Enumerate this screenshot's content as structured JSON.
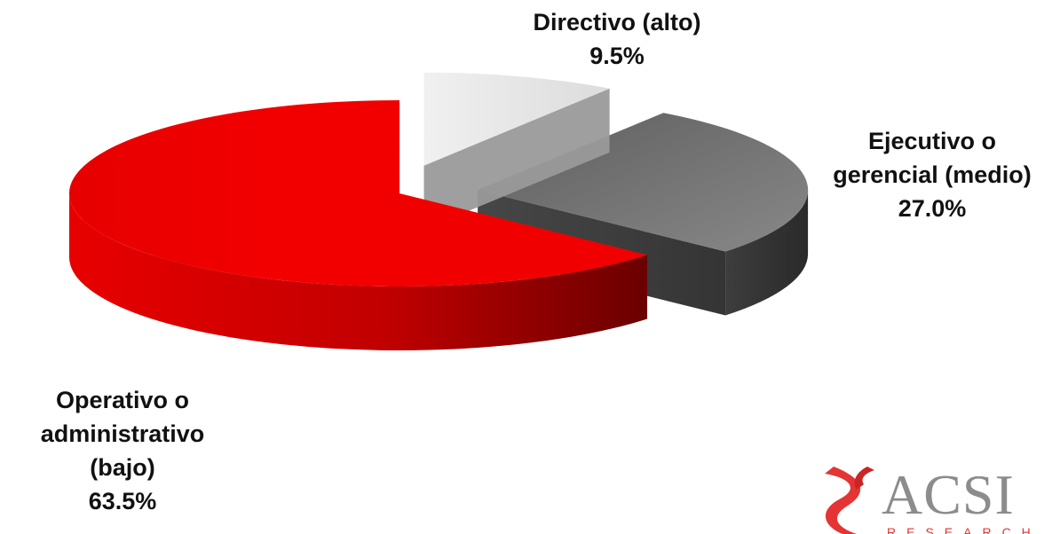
{
  "chart_data": {
    "type": "pie",
    "style": "3d-exploded",
    "slices": [
      {
        "label": "Directivo (alto)",
        "value_label": "9.5%",
        "value": 9.5,
        "color": "#e6e6e6",
        "side_color": "#9a9a9a"
      },
      {
        "label": "Ejecutivo o gerencial (medio)",
        "value_label": "27.0%",
        "value": 27.0,
        "color": "#7a7a7a",
        "side_color": "#333333"
      },
      {
        "label": "Operativo o administrativo (bajo)",
        "value_label": "63.5%",
        "value": 63.5,
        "color": "#ee0000",
        "side_color": "#b80000"
      }
    ],
    "label_lines": {
      "directivo": [
        "Directivo (alto)"
      ],
      "ejecutivo": [
        "Ejecutivo o",
        "gerencial (medio)"
      ],
      "operativo": [
        "Operativo o",
        "administrativo",
        "(bajo)"
      ]
    },
    "title": "",
    "legend": "none"
  },
  "logo": {
    "text": "ACSI",
    "subtext": "RESEARCH",
    "color": "#e53434"
  }
}
